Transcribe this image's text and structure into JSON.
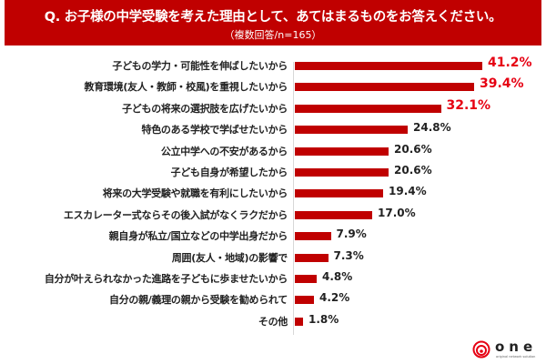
{
  "header": {
    "title": "Q. お子様の中学受験を考えた理由として、あてはまるものをお答えください。",
    "subtitle": "（複数回答/n=165）",
    "background_color": "#C00000"
  },
  "chart_data": {
    "type": "bar",
    "orientation": "horizontal",
    "title": "Q. お子様の中学受験を考えた理由として、あてはまるものをお答えください。",
    "subtitle": "（複数回答/n=165）",
    "xlabel": "",
    "ylabel": "",
    "xlim": [
      0,
      45
    ],
    "grid": false,
    "legend": null,
    "bar_color": "#C00000",
    "highlight_value_color": "#E60012",
    "categories": [
      "子どもの学力・可能性を伸ばしたいから",
      "教育環境(友人・教師・校風)を重視したいから",
      "子どもの将来の選択肢を広げたいから",
      "特色のある学校で学ばせたいから",
      "公立中学への不安があるから",
      "子ども自身が希望したから",
      "将来の大学受験や就職を有利にしたいから",
      "エスカレーター式ならその後入試がなくラクだから",
      "親自身が私立/国立などの中学出身だから",
      "周囲(友人・地域)の影響で",
      "自分が叶えられなかった進路を子どもに歩ませたいから",
      "自分の親/義理の親から受験を勧められて",
      "その他"
    ],
    "values": [
      41.2,
      39.4,
      32.1,
      24.8,
      20.6,
      20.6,
      19.4,
      17.0,
      7.9,
      7.3,
      4.8,
      4.2,
      1.8
    ],
    "value_labels": [
      "41.2%",
      "39.4%",
      "32.1%",
      "24.8%",
      "20.6%",
      "20.6%",
      "19.4%",
      "17.0%",
      "7.9%",
      "7.3%",
      "4.8%",
      "4.2%",
      "1.8%"
    ],
    "highlighted_top": 3
  },
  "logo": {
    "word": "one",
    "tagline": "original network solution"
  }
}
